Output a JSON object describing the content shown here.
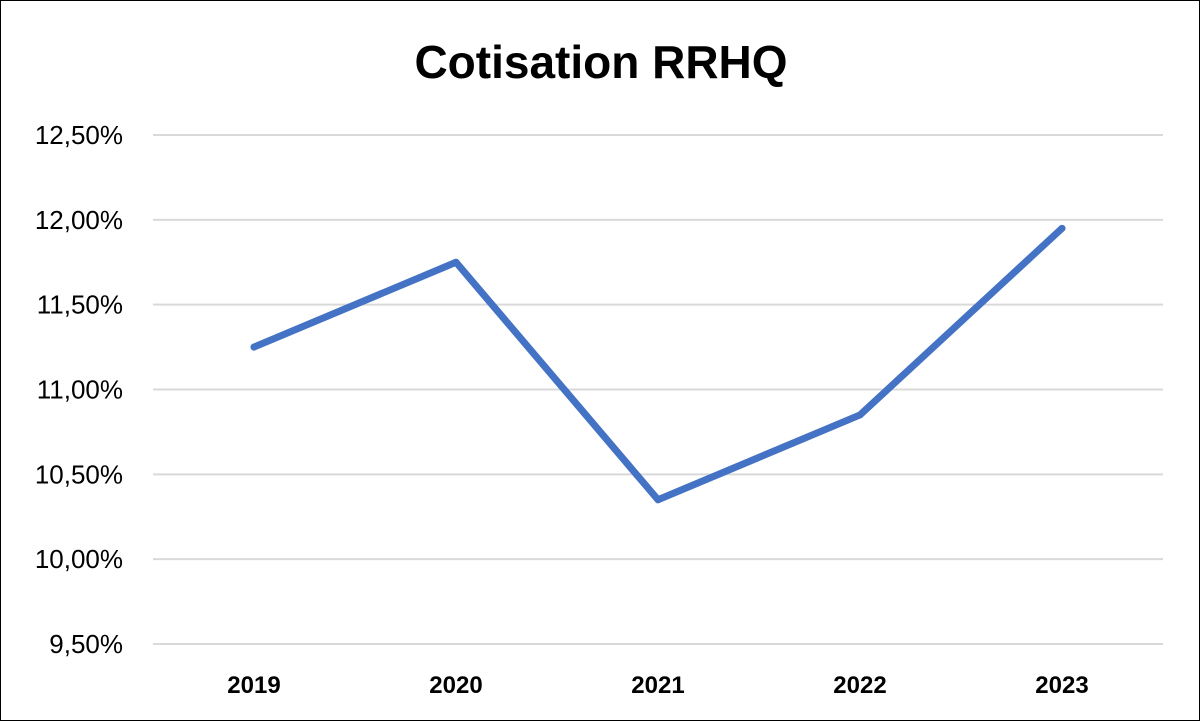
{
  "chart_data": {
    "type": "line",
    "title": "Cotisation RRHQ",
    "xlabel": "",
    "ylabel": "",
    "categories": [
      "2019",
      "2020",
      "2021",
      "2022",
      "2023"
    ],
    "series": [
      {
        "values": [
          11.25,
          11.75,
          10.35,
          10.85,
          11.95
        ],
        "color": "#4472c4"
      }
    ],
    "ylim": [
      9.5,
      12.5
    ],
    "yticks": [
      {
        "value": 12.5,
        "label": "12,50%"
      },
      {
        "value": 12.0,
        "label": "12,00%"
      },
      {
        "value": 11.5,
        "label": "11,50%"
      },
      {
        "value": 11.0,
        "label": "11,00%"
      },
      {
        "value": 10.5,
        "label": "10,50%"
      },
      {
        "value": 10.0,
        "label": "10,00%"
      },
      {
        "value": 9.5,
        "label": "9,50%"
      }
    ],
    "grid": true,
    "legend": "none"
  }
}
